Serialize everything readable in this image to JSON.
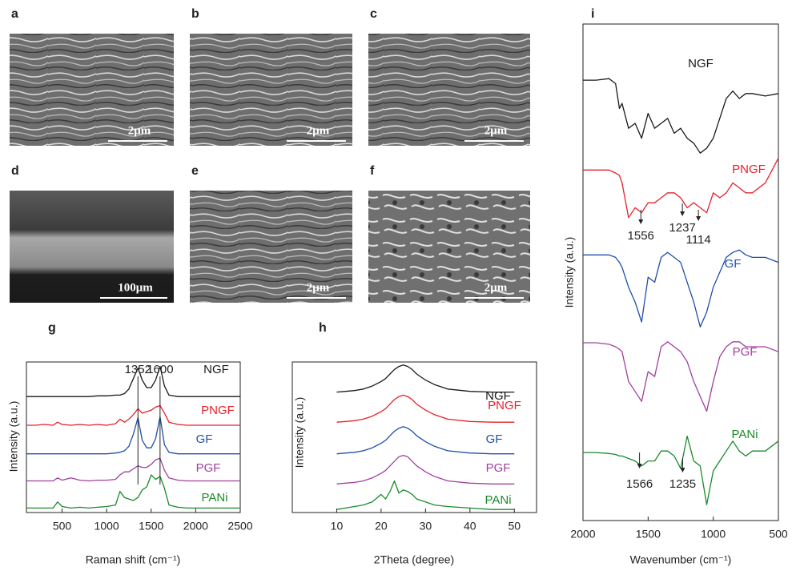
{
  "panels": [
    {
      "label": "a",
      "scale_bar": "2μm"
    },
    {
      "label": "b",
      "scale_bar": "2μm"
    },
    {
      "label": "c",
      "scale_bar": "2μm"
    },
    {
      "label": "d",
      "scale_bar": "100μm"
    },
    {
      "label": "e",
      "scale_bar": "2μm"
    },
    {
      "label": "f",
      "scale_bar": "2μm"
    }
  ],
  "chart_data": [
    {
      "type": "line",
      "panel_label": "g",
      "x_label": "Raman shift (cm⁻¹)",
      "y_label": "Intensity (a.u.)",
      "xlim": [
        100,
        2500
      ],
      "xticks": [
        500,
        1000,
        1500,
        2000,
        2500
      ],
      "ylim": [
        0,
        100
      ],
      "annotations": [
        {
          "text": "1352",
          "x": 1352
        },
        {
          "text": "1600",
          "x": 1600
        }
      ],
      "x": [
        100,
        200,
        300,
        400,
        450,
        500,
        600,
        700,
        800,
        900,
        1000,
        1100,
        1150,
        1200,
        1250,
        1300,
        1352,
        1400,
        1450,
        1500,
        1550,
        1600,
        1650,
        1700,
        1800,
        1900,
        2000,
        2100,
        2200,
        2300,
        2400,
        2500
      ],
      "series": [
        {
          "name": "NGF",
          "color": "#1a1a1a",
          "values": [
            77,
            77,
            77,
            77,
            77,
            77,
            77,
            77,
            77,
            77.5,
            77.5,
            78,
            78,
            79,
            82,
            89,
            96,
            88,
            83,
            83,
            88,
            97,
            84,
            78,
            77,
            77,
            77,
            77,
            77,
            77,
            77,
            77
          ]
        },
        {
          "name": "PNGF",
          "color": "#e8202a",
          "values": [
            58,
            58,
            58.5,
            58,
            60,
            58.5,
            58,
            58.5,
            58,
            58.5,
            58,
            59,
            62,
            60,
            62,
            65,
            69,
            66,
            67,
            68,
            70,
            71,
            66,
            60,
            58.5,
            58,
            58,
            58,
            58,
            58,
            58,
            58
          ]
        },
        {
          "name": "GF",
          "color": "#1f4fa8",
          "values": [
            39,
            39,
            39,
            39,
            39,
            39,
            39,
            39,
            39,
            39,
            39,
            39.5,
            40,
            41,
            44,
            52,
            63,
            48,
            43,
            43,
            49,
            63.5,
            45,
            40,
            39,
            39,
            39,
            39,
            39,
            39,
            39,
            39
          ]
        },
        {
          "name": "PGF",
          "color": "#a040a0",
          "values": [
            21,
            21,
            21,
            21,
            23,
            21.5,
            23,
            21.5,
            21,
            21.5,
            21.5,
            22,
            25,
            27,
            27,
            29,
            31,
            30,
            30,
            32,
            35,
            36,
            28,
            23,
            21.5,
            21,
            21,
            21,
            21,
            21,
            21,
            21
          ]
        },
        {
          "name": "PANi",
          "color": "#1a8a2a",
          "values": [
            3,
            3,
            3,
            3,
            7,
            4,
            3,
            3.5,
            3,
            3.5,
            4,
            5,
            14,
            10,
            9,
            8,
            10,
            15,
            17,
            25,
            22,
            24,
            16,
            5,
            3.5,
            3,
            3,
            3,
            3,
            3,
            3,
            3
          ]
        }
      ]
    },
    {
      "type": "line",
      "panel_label": "h",
      "x_label": "2Theta (degree)",
      "y_label": "Intensity (a.u.)",
      "xlim": [
        0,
        55
      ],
      "xticks": [
        10,
        20,
        30,
        40,
        50
      ],
      "ylim": [
        0,
        100
      ],
      "x": [
        10,
        12,
        14,
        16,
        18,
        20,
        21,
        22,
        23,
        24,
        25,
        26,
        27,
        28,
        30,
        32,
        35,
        40,
        45,
        50
      ],
      "series": [
        {
          "name": "NGF",
          "color": "#1a1a1a",
          "values": [
            80,
            80.5,
            81,
            82,
            84,
            87,
            89,
            92,
            95,
            97,
            98,
            97,
            95,
            92,
            88,
            85,
            82,
            80.5,
            80,
            80
          ]
        },
        {
          "name": "PNGF",
          "color": "#e8202a",
          "values": [
            60,
            60.5,
            61,
            62,
            64,
            67,
            69,
            72,
            75,
            77,
            78,
            77,
            75,
            72,
            68,
            65,
            62,
            60.5,
            60,
            60
          ]
        },
        {
          "name": "GF",
          "color": "#1f4fa8",
          "values": [
            39,
            39.5,
            40,
            41,
            43,
            46,
            48,
            51,
            54,
            56,
            57,
            56,
            54,
            51,
            47,
            44,
            41,
            39.5,
            39,
            39
          ]
        },
        {
          "name": "PGF",
          "color": "#a040a0",
          "values": [
            19,
            19.5,
            20,
            21,
            23,
            26,
            28,
            31,
            34,
            37,
            38,
            37,
            34,
            31,
            27,
            24,
            21,
            19.5,
            19,
            19
          ]
        },
        {
          "name": "PANi",
          "color": "#1a8a2a",
          "values": [
            2,
            3,
            4,
            5,
            7,
            12,
            9,
            14,
            21,
            13,
            15,
            14,
            12,
            9,
            7,
            5,
            4,
            3,
            2,
            2
          ]
        }
      ]
    },
    {
      "type": "line",
      "panel_label": "i",
      "x_label": "Wavenumber (cm⁻¹)",
      "y_label": "Intensity (a.u.)",
      "xlim": [
        2000,
        500
      ],
      "xticks": [
        2000,
        1500,
        1000,
        500
      ],
      "ylim": [
        0,
        100
      ],
      "annotations": [
        {
          "text": "1556",
          "x": 1556
        },
        {
          "text": "1237",
          "x": 1237
        },
        {
          "text": "1114",
          "x": 1114
        },
        {
          "text": "1566",
          "x": 1566
        },
        {
          "text": "1235",
          "x": 1235
        }
      ],
      "x": [
        2000,
        1900,
        1800,
        1750,
        1720,
        1700,
        1650,
        1600,
        1550,
        1500,
        1450,
        1400,
        1350,
        1300,
        1250,
        1200,
        1150,
        1100,
        1050,
        1000,
        950,
        900,
        850,
        800,
        750,
        700,
        600,
        500
      ],
      "series": [
        {
          "name": "NGF",
          "color": "#1a1a1a",
          "values": [
            88.7,
            88.7,
            89,
            88,
            83,
            84,
            79,
            80,
            77,
            82,
            79,
            80,
            81,
            78,
            79,
            77,
            76,
            74,
            75,
            77,
            81,
            85,
            86.5,
            85,
            86,
            86,
            85.5,
            86
          ]
        },
        {
          "name": "PNGF",
          "color": "#e8202a",
          "values": [
            70.6,
            70.6,
            70.6,
            70,
            69.5,
            68,
            61,
            63,
            62,
            64,
            64,
            65,
            66,
            66,
            65,
            63,
            64,
            63,
            62,
            66,
            65,
            66,
            68,
            67,
            66,
            66,
            68,
            73
          ]
        },
        {
          "name": "GF",
          "color": "#1f4fa8",
          "values": [
            53.5,
            53.5,
            53.5,
            53,
            52,
            51,
            47,
            44,
            40,
            49,
            48,
            53,
            54,
            53,
            52,
            48,
            44,
            39,
            42,
            47,
            50,
            53,
            54,
            54.5,
            53.5,
            53,
            53,
            52
          ]
        },
        {
          "name": "PGF",
          "color": "#a040a0",
          "values": [
            35.8,
            35.8,
            35.5,
            35,
            34.5,
            34,
            28,
            26,
            24,
            30,
            29,
            35,
            36,
            35,
            34,
            32,
            28,
            25,
            22,
            28,
            33,
            35,
            36,
            36,
            35,
            35,
            35,
            34
          ]
        },
        {
          "name": "PANi",
          "color": "#1a8a2a",
          "values": [
            13.7,
            13.7,
            13.5,
            13.3,
            13,
            13,
            12.5,
            12,
            11,
            12,
            12,
            14,
            14,
            13,
            10.5,
            17,
            12,
            11,
            3.2,
            10,
            12,
            14,
            16,
            14,
            13,
            14,
            14,
            16
          ]
        }
      ]
    }
  ]
}
